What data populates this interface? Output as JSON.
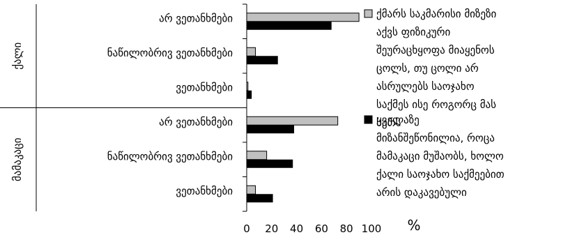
{
  "chart_data": {
    "type": "bar",
    "orientation": "horizontal",
    "groups": [
      {
        "label": "ქალი",
        "categories": [
          "არ ვეთანხმები",
          "ნაწილობრივ ვეთანხმები",
          "ვეთანხმები"
        ]
      },
      {
        "label": "მამაკაცი",
        "categories": [
          "არ ვეთანხმები",
          "ნაწილობრივ ვეთანხმები",
          "ვეთანხმები"
        ]
      }
    ],
    "series": [
      {
        "name": "ქმარს საკმარისი მიზეზი აქვს ფიზიკური შეურაცხყოფა მიაყენოს ცოლს, თუ ცოლი არ ასრულებს საოჯახო საქმეს ისე როგორც მას სურს",
        "color": "#c0c0c0",
        "values": [
          90,
          7,
          1,
          73,
          16,
          7
        ]
      },
      {
        "name": "ყველაზე მიზანშეწონილია, როცა მამაკაცი მუშაობს, ხოლო ქალი საოჯახო საქმეებით არის დაკავებული",
        "color": "#000000",
        "values": [
          68,
          25,
          4,
          38,
          37,
          21
        ]
      }
    ],
    "xlim": [
      0,
      100
    ],
    "x_ticks": [
      "0",
      "20",
      "40",
      "60",
      "80",
      "100"
    ],
    "xlabel": "%",
    "legend_position": "right",
    "grid": false
  }
}
